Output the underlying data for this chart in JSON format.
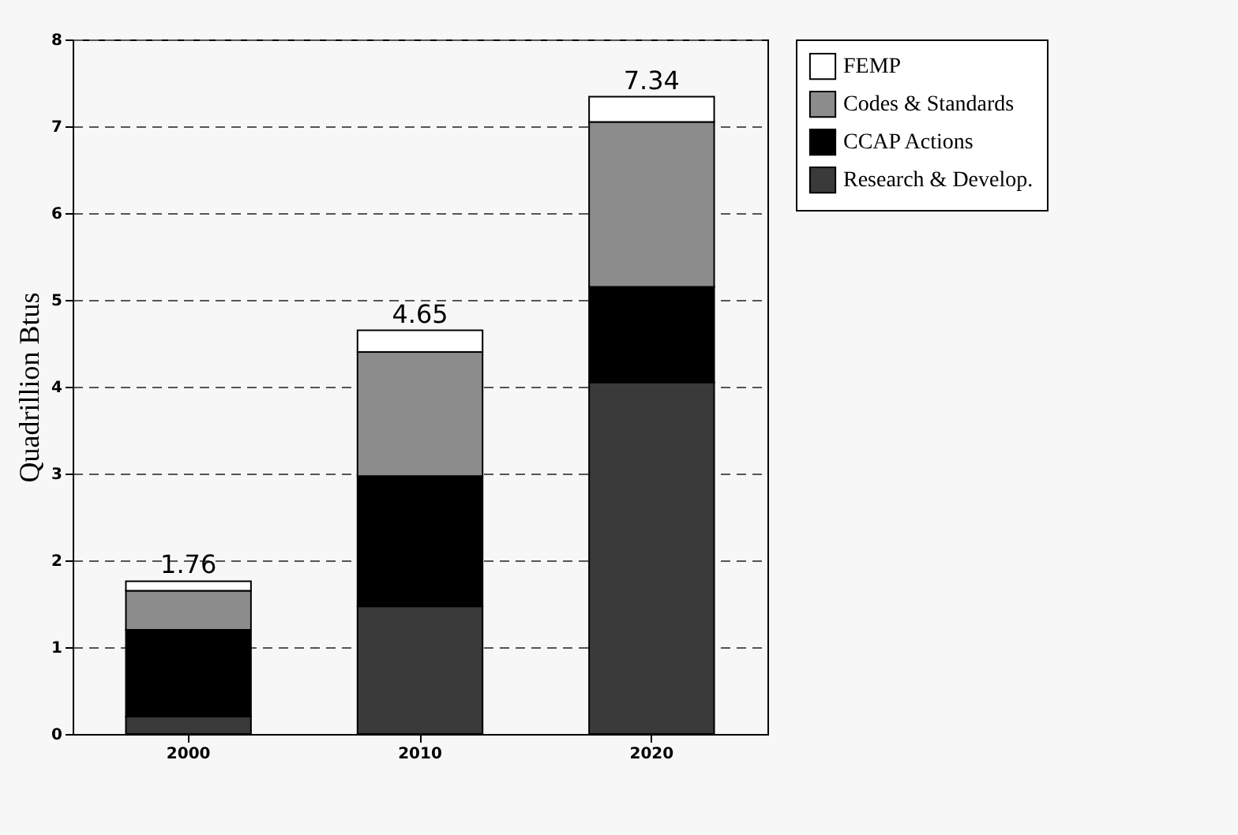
{
  "chart_data": {
    "type": "bar",
    "stacked": true,
    "ylabel": "Quadrillion Btus",
    "categories": [
      "2000",
      "2010",
      "2020"
    ],
    "series": [
      {
        "name": "Research & Develop.",
        "color": "#3a3a3a",
        "values": [
          0.2,
          1.47,
          4.05
        ]
      },
      {
        "name": "CCAP Actions",
        "color": "#000000",
        "values": [
          1.0,
          1.5,
          1.1
        ]
      },
      {
        "name": "Codes & Standards",
        "color": "#8c8c8c",
        "values": [
          0.45,
          1.43,
          1.9
        ]
      },
      {
        "name": "FEMP",
        "color": "#ffffff",
        "values": [
          0.11,
          0.25,
          0.29
        ]
      }
    ],
    "totals": [
      "1.76",
      "4.65",
      "7.34"
    ],
    "ylim": [
      0,
      8
    ],
    "yticks": [
      0,
      1,
      2,
      3,
      4,
      5,
      6,
      7,
      8
    ],
    "grid": "y",
    "legend": "top right"
  }
}
